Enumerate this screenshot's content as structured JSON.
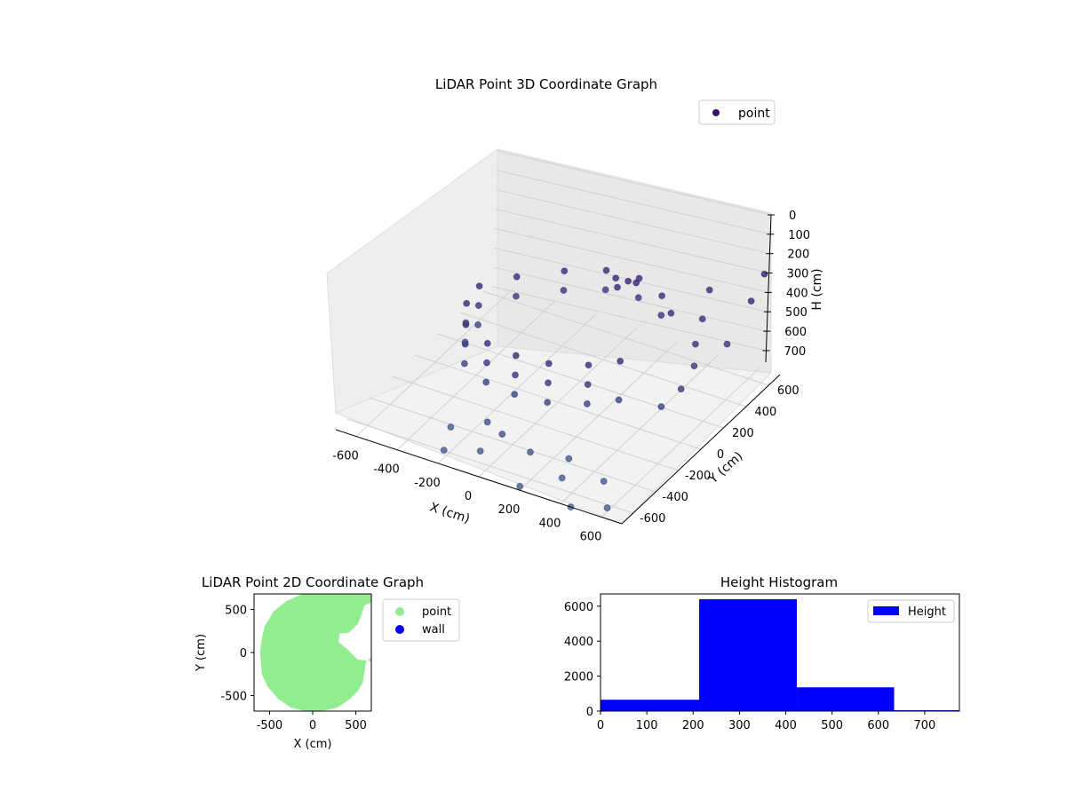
{
  "chart_data": [
    {
      "type": "scatter",
      "title": "LiDAR Point 3D Coordinate Graph",
      "xlabel": "X (cm)",
      "ylabel": "Y (cm)",
      "zlabel": "H (cm)",
      "legend": "top-right",
      "grid": true,
      "colormap": "viridis",
      "x_ticks": [
        -600,
        -400,
        -200,
        0,
        200,
        400,
        600
      ],
      "y_ticks": [
        -600,
        -400,
        -200,
        0,
        200,
        400,
        600
      ],
      "z_ticks": [
        0,
        100,
        200,
        300,
        400,
        500,
        600,
        700
      ],
      "xlim": [
        -700,
        700
      ],
      "ylim": [
        -700,
        700
      ],
      "zlim": [
        0,
        760
      ],
      "z_inverted": true,
      "series": [
        {
          "name": "point",
          "color": "#3b0f70",
          "points": [
            [
              -150,
              300,
              300
            ],
            [
              0,
              400,
              300
            ],
            [
              150,
              420,
              300
            ],
            [
              300,
              350,
              300
            ],
            [
              400,
              250,
              300
            ],
            [
              -300,
              150,
              300
            ],
            [
              -400,
              0,
              300
            ],
            [
              -380,
              -150,
              300
            ],
            [
              -300,
              -300,
              300
            ],
            [
              -150,
              -380,
              300
            ],
            [
              0,
              -400,
              300
            ],
            [
              150,
              -380,
              300
            ],
            [
              300,
              -300,
              300
            ],
            [
              400,
              -200,
              300
            ],
            [
              -150,
              300,
              400
            ],
            [
              0,
              400,
              400
            ],
            [
              150,
              420,
              400
            ],
            [
              300,
              350,
              400
            ],
            [
              -300,
              150,
              400
            ],
            [
              -400,
              0,
              400
            ],
            [
              -380,
              -150,
              400
            ],
            [
              -300,
              -300,
              400
            ],
            [
              -150,
              -380,
              400
            ],
            [
              0,
              -400,
              400
            ],
            [
              150,
              -380,
              400
            ],
            [
              300,
              -300,
              400
            ],
            [
              -400,
              0,
              500
            ],
            [
              -380,
              -150,
              500
            ],
            [
              -300,
              -300,
              500
            ],
            [
              -150,
              -380,
              500
            ],
            [
              0,
              -400,
              500
            ],
            [
              150,
              -380,
              500
            ],
            [
              300,
              -300,
              500
            ],
            [
              400,
              -200,
              500
            ],
            [
              100,
              300,
              250
            ],
            [
              150,
              320,
              260
            ],
            [
              200,
              300,
              240
            ],
            [
              120,
              280,
              280
            ],
            [
              500,
              350,
              350
            ],
            [
              550,
              200,
              380
            ],
            [
              600,
              100,
              420
            ],
            [
              620,
              -50,
              450
            ],
            [
              580,
              -150,
              500
            ],
            [
              450,
              500,
              300
            ],
            [
              650,
              300,
              400
            ],
            [
              680,
              450,
              250
            ],
            [
              660,
              600,
              200
            ],
            [
              -100,
              -450,
              650
            ],
            [
              0,
              -500,
              650
            ],
            [
              150,
              -520,
              680
            ],
            [
              -50,
              -600,
              700
            ],
            [
              300,
              -450,
              700
            ],
            [
              350,
              -600,
              700
            ],
            [
              500,
              -500,
              720
            ],
            [
              600,
              -650,
              740
            ],
            [
              -250,
              -500,
              700
            ],
            [
              -200,
              -650,
              720
            ],
            [
              200,
              -700,
              740
            ],
            [
              450,
              -700,
              760
            ]
          ]
        }
      ]
    },
    {
      "type": "scatter",
      "title": "LiDAR Point 2D Coordinate Graph",
      "xlabel": "X (cm)",
      "ylabel": "Y (cm)",
      "legend": "outside-right",
      "x_ticks": [
        -500,
        0,
        500
      ],
      "y_ticks": [
        -500,
        0,
        500
      ],
      "xlim": [
        -680,
        680
      ],
      "ylim": [
        -680,
        680
      ],
      "series": [
        {
          "name": "point",
          "color": "#90ee90",
          "outline": [
            [
              -120,
              680
            ],
            [
              -300,
              600
            ],
            [
              -450,
              480
            ],
            [
              -560,
              300
            ],
            [
              -600,
              100
            ],
            [
              -610,
              0
            ],
            [
              -590,
              -250
            ],
            [
              -520,
              -400
            ],
            [
              -400,
              -540
            ],
            [
              -250,
              -640
            ],
            [
              -80,
              -680
            ],
            [
              100,
              -680
            ],
            [
              280,
              -640
            ],
            [
              420,
              -550
            ],
            [
              520,
              -450
            ],
            [
              580,
              -350
            ],
            [
              620,
              -100
            ],
            [
              680,
              -60
            ],
            [
              680,
              -100
            ],
            [
              520,
              -80
            ],
            [
              400,
              40
            ],
            [
              300,
              120
            ],
            [
              310,
              220
            ],
            [
              420,
              230
            ],
            [
              520,
              330
            ],
            [
              560,
              420
            ],
            [
              600,
              550
            ],
            [
              680,
              580
            ],
            [
              680,
              680
            ],
            [
              350,
              680
            ]
          ]
        },
        {
          "name": "wall",
          "color": "#0000ff",
          "outline": []
        }
      ]
    },
    {
      "type": "bar",
      "title": "Height Histogram",
      "xlabel": "",
      "ylabel": "",
      "legend": "top-right",
      "x_ticks": [
        0,
        100,
        200,
        300,
        400,
        500,
        600,
        700
      ],
      "y_ticks": [
        0,
        2000,
        4000,
        6000
      ],
      "xlim": [
        0,
        775
      ],
      "ylim": [
        0,
        6700
      ],
      "series": [
        {
          "name": "Height",
          "color": "#0000ff",
          "bins": [
            {
              "start": 0,
              "end": 213,
              "count": 650
            },
            {
              "start": 213,
              "end": 424,
              "count": 6400
            },
            {
              "start": 424,
              "end": 634,
              "count": 1360
            },
            {
              "start": 634,
              "end": 775,
              "count": 50
            }
          ]
        }
      ]
    }
  ]
}
